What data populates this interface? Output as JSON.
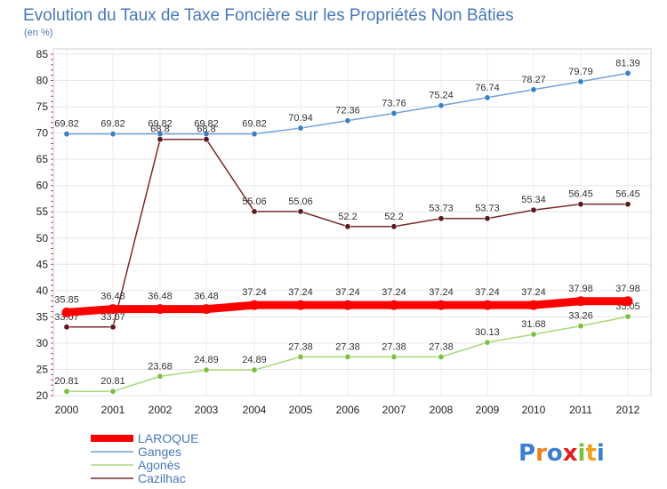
{
  "chart_data": {
    "type": "line",
    "title": "Evolution du Taux de Taxe Foncière sur les Propriétés Non Bâties",
    "subtitle": "(en %)",
    "xlabel": "",
    "ylabel": "(en %)",
    "ylim": [
      20,
      85
    ],
    "yticks": [
      20,
      25,
      30,
      35,
      40,
      45,
      50,
      55,
      60,
      65,
      70,
      75,
      80,
      85
    ],
    "grid": true,
    "legend_position": "bottom-left",
    "categories": [
      "2000",
      "2001",
      "2002",
      "2003",
      "2004",
      "2005",
      "2006",
      "2007",
      "2008",
      "2009",
      "2010",
      "2011",
      "2012"
    ],
    "series": [
      {
        "name": "Ganges",
        "color": "#6fa3d8",
        "marker": "#3a7fc4",
        "values": [
          69.82,
          69.82,
          69.82,
          69.82,
          69.82,
          70.94,
          72.36,
          73.76,
          75.24,
          76.74,
          78.27,
          79.79,
          81.39
        ],
        "labels": [
          "69.82",
          "69.82",
          "69.82",
          "69.82",
          "69.82",
          "70.94",
          "72.36",
          "73.76",
          "75.24",
          "76.74",
          "78.27",
          "79.79",
          "81.39"
        ]
      },
      {
        "name": "Cazilhac",
        "color": "#7a2a2a",
        "marker": "#5c1a1a",
        "values": [
          33.07,
          33.07,
          68.8,
          68.8,
          55.06,
          55.06,
          52.2,
          52.2,
          53.73,
          53.73,
          55.34,
          56.45,
          56.45
        ],
        "labels": [
          "33.07",
          "33.07",
          "68.8",
          "68.8",
          "55.06",
          "55.06",
          "52.2",
          "52.2",
          "53.73",
          "53.73",
          "55.34",
          "56.45",
          "56.45"
        ]
      },
      {
        "name": "Agonès",
        "color": "#a8d878",
        "marker": "#7cc040",
        "values": [
          20.81,
          20.81,
          23.68,
          24.89,
          24.89,
          27.38,
          27.38,
          27.38,
          27.38,
          30.13,
          31.68,
          33.26,
          35.05
        ],
        "labels": [
          "20.81",
          "20.81",
          "23.68",
          "24.89",
          "24.89",
          "27.38",
          "27.38",
          "27.38",
          "27.38",
          "30.13",
          "31.68",
          "33.26",
          "35.05"
        ]
      },
      {
        "name": "LAROQUE",
        "color": "#ff0000",
        "marker": "#ff0000",
        "bold": true,
        "values": [
          35.85,
          36.48,
          36.48,
          36.48,
          37.24,
          37.24,
          37.24,
          37.24,
          37.24,
          37.24,
          37.24,
          37.98,
          37.98
        ],
        "labels": [
          "35.85",
          "36.48",
          "36.48",
          "36.48",
          "37.24",
          "37.24",
          "37.24",
          "37.24",
          "37.24",
          "37.24",
          "37.24",
          "37.98",
          "37.98"
        ]
      }
    ],
    "legend": [
      "LAROQUE",
      "Ganges",
      "Agonès",
      "Cazilhac"
    ]
  },
  "branding": {
    "logo_text": "Proxiti",
    "logo_colors": [
      "#3a7fd0",
      "#f08020",
      "#3a7fd0",
      "#e02020",
      "#78c040",
      "#f0a020",
      "#3a7fd0"
    ]
  }
}
